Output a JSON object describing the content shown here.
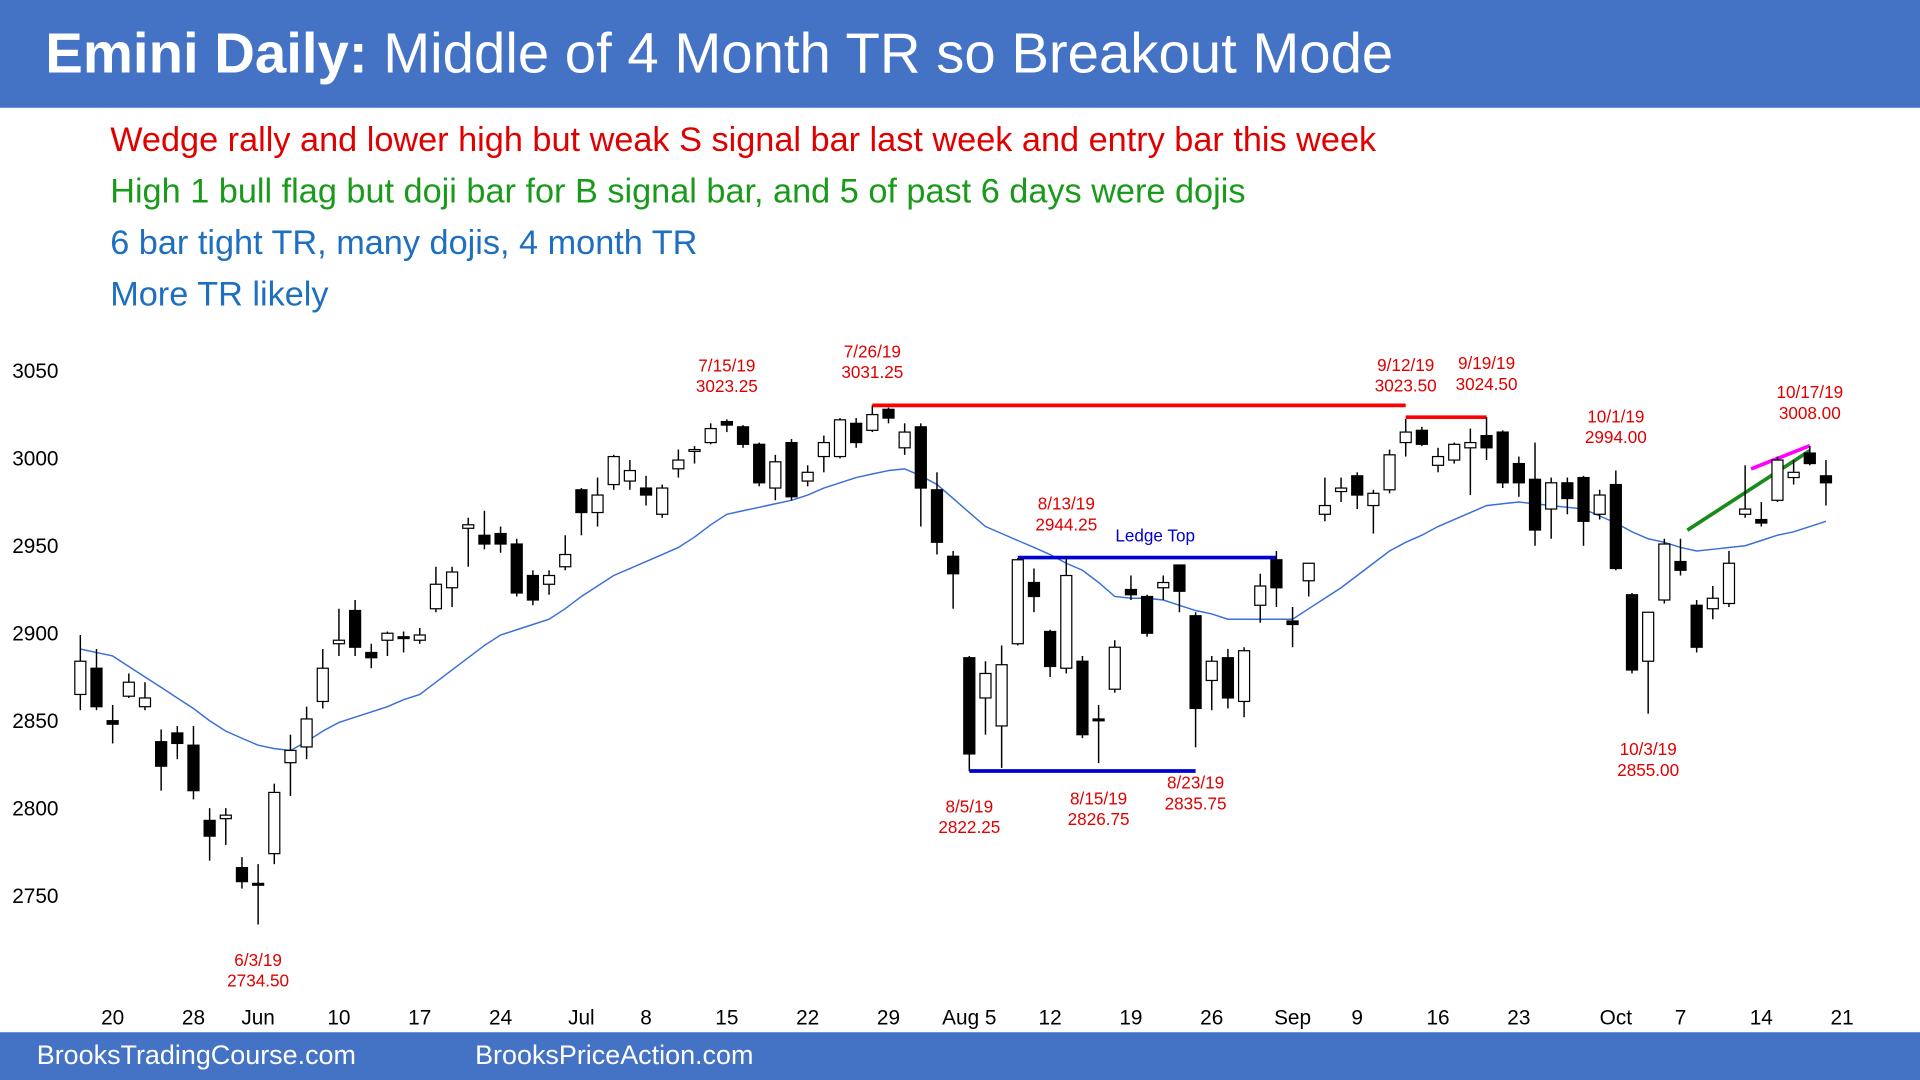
{
  "header": {
    "title_bold": "Emini Daily:",
    "title": "Middle of 4 Month TR so Breakout Mode"
  },
  "notes": [
    {
      "text": "Wedge rally and lower high but weak S signal bar last week and entry bar this week",
      "color": "#e00000"
    },
    {
      "text": "High 1 bull flag but doji bar for B signal bar, and 5 of past 6 days were dojis",
      "color": "#1a9a1a"
    },
    {
      "text": "6 bar tight TR, many dojis, 4 month TR",
      "color": "#1f6fc0"
    },
    {
      "text": "More TR likely",
      "color": "#1f6fc0"
    }
  ],
  "footer": [
    "BrooksTradingCourse.com",
    "BrooksPriceAction.com"
  ],
  "chart_data": {
    "type": "candlestick",
    "categories": [
      null,
      null,
      "20",
      null,
      null,
      null,
      null,
      "28",
      null,
      null,
      null,
      "Jun",
      null,
      null,
      null,
      null,
      "10",
      null,
      null,
      null,
      null,
      "17",
      null,
      null,
      null,
      null,
      "24",
      null,
      null,
      null,
      null,
      "Jul",
      null,
      null,
      null,
      "8",
      null,
      null,
      null,
      null,
      "15",
      null,
      null,
      null,
      null,
      "22",
      null,
      null,
      null,
      null,
      "29",
      null,
      null,
      null,
      null,
      "Aug 5",
      null,
      null,
      null,
      null,
      "12",
      null,
      null,
      null,
      null,
      "19",
      null,
      null,
      null,
      null,
      "26",
      null,
      null,
      null,
      null,
      "Sep",
      null,
      null,
      null,
      "9",
      null,
      null,
      null,
      null,
      "16",
      null,
      null,
      null,
      null,
      "23",
      null,
      null,
      null,
      null,
      null,
      "Oct",
      null,
      null,
      null,
      "7",
      null,
      null,
      null,
      null,
      "14",
      null,
      null,
      null,
      null,
      "21"
    ],
    "open": [
      2866,
      2881,
      2851,
      2865,
      2859,
      2839,
      2844,
      2837,
      2794,
      2795,
      2767,
      2758,
      2775,
      2827,
      2836,
      2862,
      2895,
      2914,
      2890,
      2897,
      2899,
      2897,
      2915,
      2927,
      2961,
      2957,
      2958,
      2952,
      2934,
      2929,
      2939,
      2983,
      2970,
      2986,
      2988,
      2984,
      2969,
      2995,
      3005,
      3010,
      3022,
      3019,
      3009,
      2984,
      3010,
      2988,
      3002,
      3002,
      3021,
      3017,
      3029,
      3007,
      3019,
      2983,
      2945,
      2887,
      2864,
      2848,
      2895,
      2930,
      2902,
      2881,
      2885,
      2852,
      2869,
      2926,
      2922,
      2927,
      2940,
      2911,
      2874,
      2887,
      2862,
      2917,
      2943,
      2908,
      2931,
      2969,
      2982,
      2991,
      2974,
      2983,
      3010,
      3017,
      2997,
      3000,
      3007,
      3014,
      3016,
      2998,
      2989,
      2972,
      2987,
      2990,
      2969,
      2986,
      2923,
      2885,
      2920,
      2942,
      2917,
      2915,
      2918,
      2969,
      2966,
      2977,
      2990,
      3004,
      2991,
      null
    ],
    "high": [
      2900,
      2892,
      2860,
      2878,
      2873,
      2846,
      2848,
      2848,
      2801,
      2801,
      2773,
      2769,
      2815,
      2843,
      2859,
      2892,
      2915,
      2920,
      2895,
      2902,
      2902,
      2904,
      2939,
      2939,
      2967,
      2971,
      2962,
      2955,
      2937,
      2937,
      2957,
      2984,
      2990,
      3003,
      3000,
      2991,
      2986,
      3006,
      3008,
      3021,
      3023.25,
      3020,
      3010,
      3003,
      3012,
      2997,
      3014,
      3024,
      3024,
      3031.25,
      3030,
      3021,
      3021,
      2993,
      2948,
      2888,
      2885,
      2894,
      2944,
      2938,
      2903,
      2944.25,
      2888,
      2860,
      2897,
      2934,
      2923,
      2934,
      2940,
      2913,
      2888,
      2892,
      2893,
      2935,
      2948,
      2916,
      2941,
      2990,
      2990,
      2993,
      2983,
      3006,
      3023.5,
      3019,
      3007,
      3010,
      3018,
      3024.5,
      3017,
      3002,
      3010,
      2990,
      2990,
      2991,
      2983,
      2994,
      2924,
      2913,
      2955,
      2955,
      2920,
      2928,
      2948,
      2997,
      2976,
      3002,
      3000,
      3008,
      3000,
      null
    ],
    "low": [
      2857,
      2857,
      2838,
      2864,
      2857,
      2811,
      2829,
      2806,
      2771,
      2780,
      2755,
      2734.5,
      2769,
      2808,
      2829,
      2858,
      2888,
      2888,
      2881,
      2888,
      2890,
      2895,
      2913,
      2916,
      2939,
      2949,
      2947,
      2922,
      2917,
      2923,
      2937,
      2957,
      2962,
      2983,
      2983,
      2974,
      2967,
      2990,
      2998,
      3009,
      3016,
      3007,
      2985,
      2977,
      2977,
      2985,
      2993,
      3001,
      3007,
      3016,
      3021,
      3003,
      2962,
      2946,
      2915,
      2822.25,
      2843,
      2824,
      2894,
      2913,
      2876,
      2878,
      2841,
      2826.75,
      2867,
      2920,
      2899,
      2920,
      2913,
      2835.75,
      2857,
      2858,
      2853,
      2907,
      2916,
      2893,
      2922,
      2965,
      2976,
      2972,
      2958,
      2981,
      3002,
      3008,
      2993,
      2998,
      2980,
      3000,
      2984,
      2979,
      2951,
      2955,
      2969,
      2951,
      2966,
      2937,
      2878,
      2855,
      2918,
      2934,
      2890,
      2909,
      2916,
      2967,
      2962,
      2976,
      2986,
      2997,
      2974,
      null
    ],
    "close": [
      2885,
      2859,
      2849,
      2873,
      2864,
      2825,
      2838,
      2811,
      2785,
      2797,
      2759,
      2757,
      2810,
      2834,
      2852,
      2881,
      2897,
      2893,
      2887,
      2901,
      2898,
      2900,
      2929,
      2936,
      2963,
      2952,
      2952,
      2924,
      2920,
      2934,
      2946,
      2970,
      2980,
      3002,
      2994,
      2980,
      2984,
      3000,
      3006,
      3018,
      3020,
      3009,
      2987,
      2999,
      2979,
      2993,
      3010,
      3023,
      3010,
      3026,
      3024,
      3016,
      2984,
      2953,
      2935,
      2832,
      2878,
      2883,
      2943,
      2922,
      2882,
      2934,
      2843,
      2851,
      2893,
      2923,
      2901,
      2930,
      2925,
      2858,
      2885,
      2864,
      2891,
      2928,
      2927,
      2906,
      2941,
      2974,
      2984,
      2980,
      2981,
      3003,
      3016,
      3009,
      3002,
      3009,
      3010,
      3007,
      2987,
      2987,
      2960,
      2987,
      2978,
      2965,
      2980,
      2938,
      2880,
      2913,
      2952,
      2937,
      2893,
      2921,
      2941,
      2972,
      2964,
      3000,
      2993,
      2998,
      2987,
      null
    ],
    "up_color": "#ffffff",
    "down_color": "#000000",
    "moving_average": {
      "color": "#3a6fd8",
      "values": [
        2892,
        2890,
        2888,
        2882,
        2876,
        2870,
        2864,
        2858,
        2851,
        2845,
        2841,
        2837,
        2835,
        2834,
        2839,
        2845,
        2850,
        2853,
        2856,
        2859,
        2863,
        2866,
        2873,
        2880,
        2887,
        2894,
        2900,
        2903,
        2906,
        2909,
        2915,
        2922,
        2928,
        2934,
        2938,
        2942,
        2946,
        2950,
        2956,
        2963,
        2969,
        2971,
        2973,
        2975,
        2977,
        2980,
        2984,
        2987,
        2990,
        2992,
        2994,
        2995,
        2991,
        2986,
        2978,
        2970,
        2962,
        2958,
        2954,
        2950,
        2946,
        2941,
        2937,
        2930,
        2922,
        2921,
        2921,
        2920,
        2917,
        2914,
        2912,
        2909,
        2909,
        2909,
        2909,
        2909,
        2915,
        2921,
        2927,
        2934,
        2941,
        2948,
        2953,
        2957,
        2962,
        2966,
        2970,
        2974,
        2975,
        2976,
        2975,
        2974,
        2973,
        2972,
        2968,
        2964,
        2959,
        2955,
        2953,
        2950,
        2948,
        2949,
        2950,
        2951,
        2954,
        2957,
        2959,
        2962,
        2965,
        null
      ]
    },
    "ylim": [
      2696,
      3060
    ],
    "yticks": [
      2750,
      2800,
      2850,
      2900,
      2950,
      3000,
      3050
    ],
    "grid": false,
    "annotations": [
      {
        "date": "6/3/19",
        "price": {
          "value": 2734.5,
          "label": "2734.50"
        },
        "position": "below"
      },
      {
        "date": "7/15/19",
        "price": 3023.25,
        "position": "above"
      },
      {
        "date": "7/26/19",
        "price": 3031.25,
        "position": "above"
      },
      {
        "date": "8/5/19",
        "price": 2822.25,
        "position": "below"
      },
      {
        "date": "8/13/19",
        "price": 2944.25,
        "position": "above"
      },
      {
        "date": "8/15/19",
        "price": 2826.75,
        "position": "below"
      },
      {
        "date": "8/23/19",
        "price": 2835.75,
        "position": "below"
      },
      {
        "date": "9/12/19",
        "price": {
          "value": 3023.5,
          "label": "3023.50"
        },
        "position": "above"
      },
      {
        "date": "9/19/19",
        "price": {
          "value": 3024.5,
          "label": "3024.50"
        },
        "position": "above"
      },
      {
        "date": "10/1/19",
        "price": {
          "value": 2994,
          "label": "2994.00"
        },
        "position": "above"
      },
      {
        "date": "10/3/19",
        "price": {
          "value": 2855,
          "label": "2855.00"
        },
        "position": "below"
      },
      {
        "date": "10/17/19",
        "price": {
          "value": 3008,
          "label": "3008.00"
        },
        "position": "above"
      }
    ],
    "ledge_label": "Ledge Top"
  }
}
